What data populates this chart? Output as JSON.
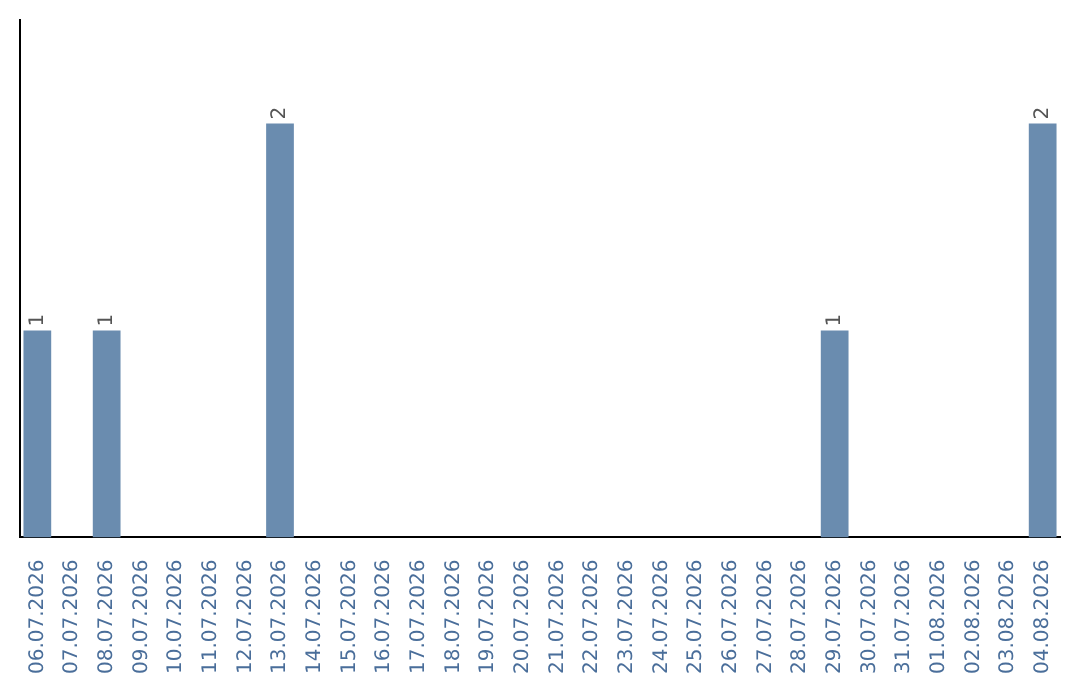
{
  "chart_data": {
    "type": "bar",
    "categories": [
      "06.07.2026",
      "07.07.2026",
      "08.07.2026",
      "09.07.2026",
      "10.07.2026",
      "11.07.2026",
      "12.07.2026",
      "13.07.2026",
      "14.07.2026",
      "15.07.2026",
      "16.07.2026",
      "17.07.2026",
      "18.07.2026",
      "19.07.2026",
      "20.07.2026",
      "21.07.2026",
      "22.07.2026",
      "23.07.2026",
      "24.07.2026",
      "25.07.2026",
      "26.07.2026",
      "27.07.2026",
      "28.07.2026",
      "29.07.2026",
      "30.07.2026",
      "31.07.2026",
      "01.08.2026",
      "02.08.2026",
      "03.08.2026",
      "04.08.2026"
    ],
    "values": [
      1,
      0,
      1,
      0,
      0,
      0,
      0,
      2,
      0,
      0,
      0,
      0,
      0,
      0,
      0,
      0,
      0,
      0,
      0,
      0,
      0,
      0,
      0,
      1,
      0,
      0,
      0,
      0,
      0,
      2
    ],
    "value_labels": [
      "1",
      null,
      "1",
      null,
      null,
      null,
      null,
      "2",
      null,
      null,
      null,
      null,
      null,
      null,
      null,
      null,
      null,
      null,
      null,
      null,
      null,
      null,
      null,
      "1",
      null,
      null,
      null,
      null,
      null,
      "2"
    ],
    "color": "#6a8caf",
    "grid": false,
    "legend": false,
    "tick_labels": "x"
  }
}
